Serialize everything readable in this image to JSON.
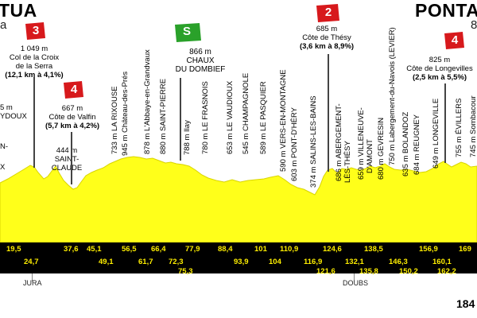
{
  "start": {
    "name": "NANTUA",
    "visible": "TUA",
    "sub": "a"
  },
  "finish": {
    "name": "PONTARLIER",
    "visible": "PONTAR",
    "sub": "8"
  },
  "total_km_visible": "184",
  "colors": {
    "profile": "#ffff1a",
    "profile_dark": "#e9e600",
    "band": "#000000",
    "km_text": "#ffef00",
    "climb_flag": "#d7191c",
    "sprint_flag": "#2aa12a"
  },
  "climbs": [
    {
      "flag": "3",
      "alt": "1 049 m",
      "name1": "Col de la Croix",
      "name2": "de la Serra",
      "stats": "(12,1 km à 4,1%)"
    },
    {
      "flag": "4",
      "alt": "667 m",
      "name1": "Côte de Valfin",
      "stats": "(5,7 km à 4,2%)"
    },
    {
      "flag": "2",
      "alt": "685 m",
      "name1": "Côte de Thésy",
      "stats": "(3,6 km à 8,9%)"
    },
    {
      "flag": "4",
      "alt": "825 m",
      "name1": "Côte de Longevilles",
      "stats": "(2,5 km à 5,5%)"
    }
  ],
  "sprint": {
    "flag": "S",
    "alt": "866 m",
    "name1": "CHAUX",
    "name2": "DU DOMBIEF"
  },
  "left_labels": {
    "l1": "5 m",
    "l2": "YDOUX",
    "l3": "N-",
    "l4": "X"
  },
  "saint_claude": {
    "alt": "444 m",
    "name1": "SAINT-",
    "name2": "CLAUDE"
  },
  "vertical_labels": [
    "733 m LA RIXOUSE",
    "945 m Château-des-Prés",
    "878 m L'Abbaye-en-Grandvaux",
    "880 m SAINT-PIERRE",
    "788 m Ilay",
    "780 m LE FRASNOIS",
    "653 m LE VAUDIOUX",
    "545 m CHAMPAGNOLE",
    "589 m LE PASQUIER",
    "590 m VERS-EN-MONTAGNE",
    "603 m PONT-D'HÉRY",
    "374 m SALINS-LES-BAINS",
    "686 m ABERGEMENT-",
    "LÈS-THÉSY",
    "659 m VILLENEUVE-",
    "D'AMONT",
    "680 m GEVRESIN",
    "750 m Labergement-du-Navois (LEVIER)",
    "635 m BOLANDOZ",
    "684 m REUGNEY",
    "649 m LONGEVILLE",
    "755 m ÉVILLERS",
    "745 m Sombacour"
  ],
  "km_top": [
    "19,5",
    "37,6",
    "45,1",
    "56,5",
    "66,4",
    "77,9",
    "88,4",
    "101",
    "110,9",
    "124,6",
    "138,5",
    "156,9",
    "169"
  ],
  "km_bottom": [
    "24,7",
    "49,1",
    "61,7",
    "72,3",
    "75,3",
    "93,9",
    "104",
    "116,9",
    "121,6",
    "132,1",
    "135,8",
    "146,3",
    "150,2",
    "160,1",
    "162,2"
  ],
  "departments": [
    "JURA",
    "DOUBS"
  ]
}
